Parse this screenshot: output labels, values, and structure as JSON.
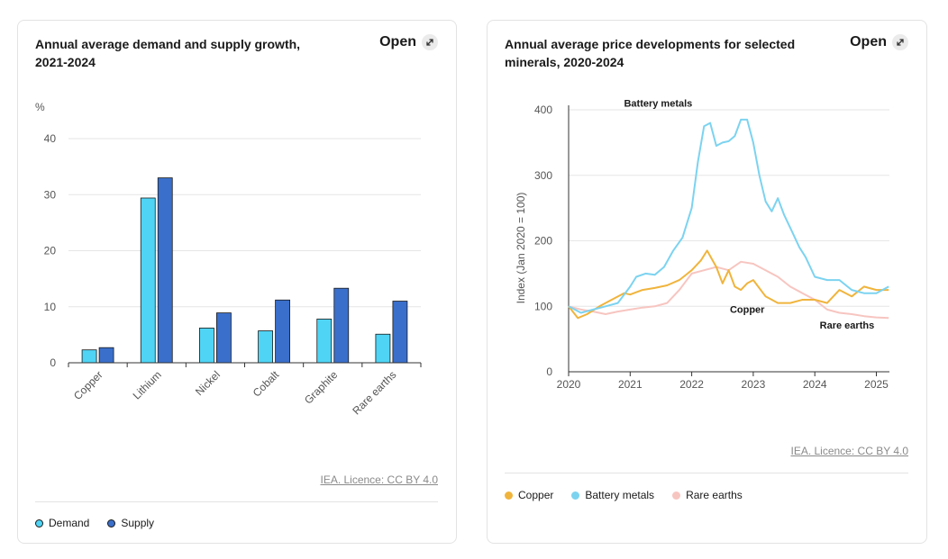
{
  "cards": [
    {
      "title": "Annual average demand and supply growth, 2021-2024",
      "open_label": "Open",
      "licence": "IEA. Licence: CC BY 4.0",
      "legend": [
        {
          "label": "Demand",
          "color": "#4fd4f5"
        },
        {
          "label": "Supply",
          "color": "#3a6fcb"
        }
      ]
    },
    {
      "title": "Annual average price developments for selected minerals, 2020-2024",
      "open_label": "Open",
      "licence": "IEA. Licence: CC BY 4.0",
      "legend": [
        {
          "label": "Copper",
          "color": "#f0b43c"
        },
        {
          "label": "Battery metals",
          "color": "#7cd3f0"
        },
        {
          "label": "Rare earths",
          "color": "#f7c5c0"
        }
      ]
    }
  ],
  "chart_data": [
    {
      "type": "bar",
      "title": "Annual average demand and supply growth, 2021-2024",
      "ylabel": "%",
      "xlabel": "",
      "ylim": [
        0,
        40
      ],
      "yticks": [
        0,
        10,
        20,
        30,
        40
      ],
      "categories": [
        "Copper",
        "Lithium",
        "Nickel",
        "Cobalt",
        "Graphite",
        "Rare earths"
      ],
      "series": [
        {
          "name": "Demand",
          "color": "#4fd4f5",
          "values": [
            2.3,
            29.4,
            6.2,
            5.7,
            7.8,
            5.1
          ]
        },
        {
          "name": "Supply",
          "color": "#3a6fcb",
          "values": [
            2.7,
            33.0,
            8.9,
            11.2,
            13.3,
            11.0
          ]
        }
      ]
    },
    {
      "type": "line",
      "title": "Annual average price developments for selected minerals, 2020-2024",
      "ylabel": "Index (Jan 2020 = 100)",
      "xlabel": "",
      "ylim": [
        0,
        400
      ],
      "xlim": [
        2020,
        2025.2
      ],
      "yticks": [
        0,
        100,
        200,
        300,
        400
      ],
      "xticks": [
        2020,
        2021,
        2022,
        2023,
        2024,
        2025
      ],
      "series": [
        {
          "name": "Battery metals",
          "color": "#7cd3f0",
          "label": "Battery metals",
          "label_at": [
            2020.9,
            405
          ],
          "x": [
            2020,
            2020.2,
            2020.4,
            2020.6,
            2020.8,
            2021,
            2021.1,
            2021.25,
            2021.4,
            2021.55,
            2021.7,
            2021.85,
            2022,
            2022.1,
            2022.2,
            2022.3,
            2022.4,
            2022.5,
            2022.6,
            2022.7,
            2022.8,
            2022.9,
            2023,
            2023.1,
            2023.2,
            2023.3,
            2023.4,
            2023.5,
            2023.6,
            2023.75,
            2023.85,
            2024,
            2024.2,
            2024.4,
            2024.6,
            2024.8,
            2025,
            2025.2
          ],
          "values": [
            100,
            90,
            95,
            100,
            105,
            130,
            145,
            150,
            148,
            160,
            185,
            205,
            250,
            320,
            375,
            380,
            345,
            350,
            352,
            360,
            385,
            385,
            350,
            300,
            260,
            245,
            265,
            240,
            220,
            190,
            175,
            145,
            140,
            140,
            125,
            120,
            120,
            130
          ]
        },
        {
          "name": "Copper",
          "color": "#f0b43c",
          "label": "Copper",
          "label_at": [
            2022.62,
            90
          ],
          "x": [
            2020,
            2020.15,
            2020.3,
            2020.5,
            2020.7,
            2020.9,
            2021,
            2021.2,
            2021.4,
            2021.6,
            2021.8,
            2022,
            2022.15,
            2022.25,
            2022.4,
            2022.5,
            2022.6,
            2022.7,
            2022.8,
            2022.9,
            2023,
            2023.2,
            2023.4,
            2023.6,
            2023.8,
            2024,
            2024.2,
            2024.4,
            2024.6,
            2024.8,
            2025,
            2025.2
          ],
          "values": [
            100,
            82,
            88,
            100,
            110,
            120,
            118,
            125,
            128,
            132,
            140,
            155,
            170,
            185,
            160,
            135,
            155,
            130,
            125,
            135,
            140,
            115,
            105,
            105,
            110,
            110,
            105,
            125,
            115,
            130,
            125,
            125
          ]
        },
        {
          "name": "Rare earths",
          "color": "#f7c5c0",
          "label": "Rare earths",
          "label_at": [
            2024.08,
            66
          ],
          "x": [
            2020,
            2020.2,
            2020.4,
            2020.6,
            2020.8,
            2021,
            2021.2,
            2021.4,
            2021.6,
            2021.8,
            2022,
            2022.2,
            2022.4,
            2022.6,
            2022.8,
            2023,
            2023.2,
            2023.4,
            2023.6,
            2023.8,
            2024,
            2024.2,
            2024.4,
            2024.6,
            2024.8,
            2025,
            2025.2
          ],
          "values": [
            100,
            95,
            92,
            88,
            92,
            95,
            98,
            100,
            105,
            125,
            150,
            155,
            160,
            155,
            168,
            165,
            155,
            145,
            130,
            120,
            110,
            95,
            90,
            88,
            85,
            83,
            82
          ]
        }
      ]
    }
  ]
}
